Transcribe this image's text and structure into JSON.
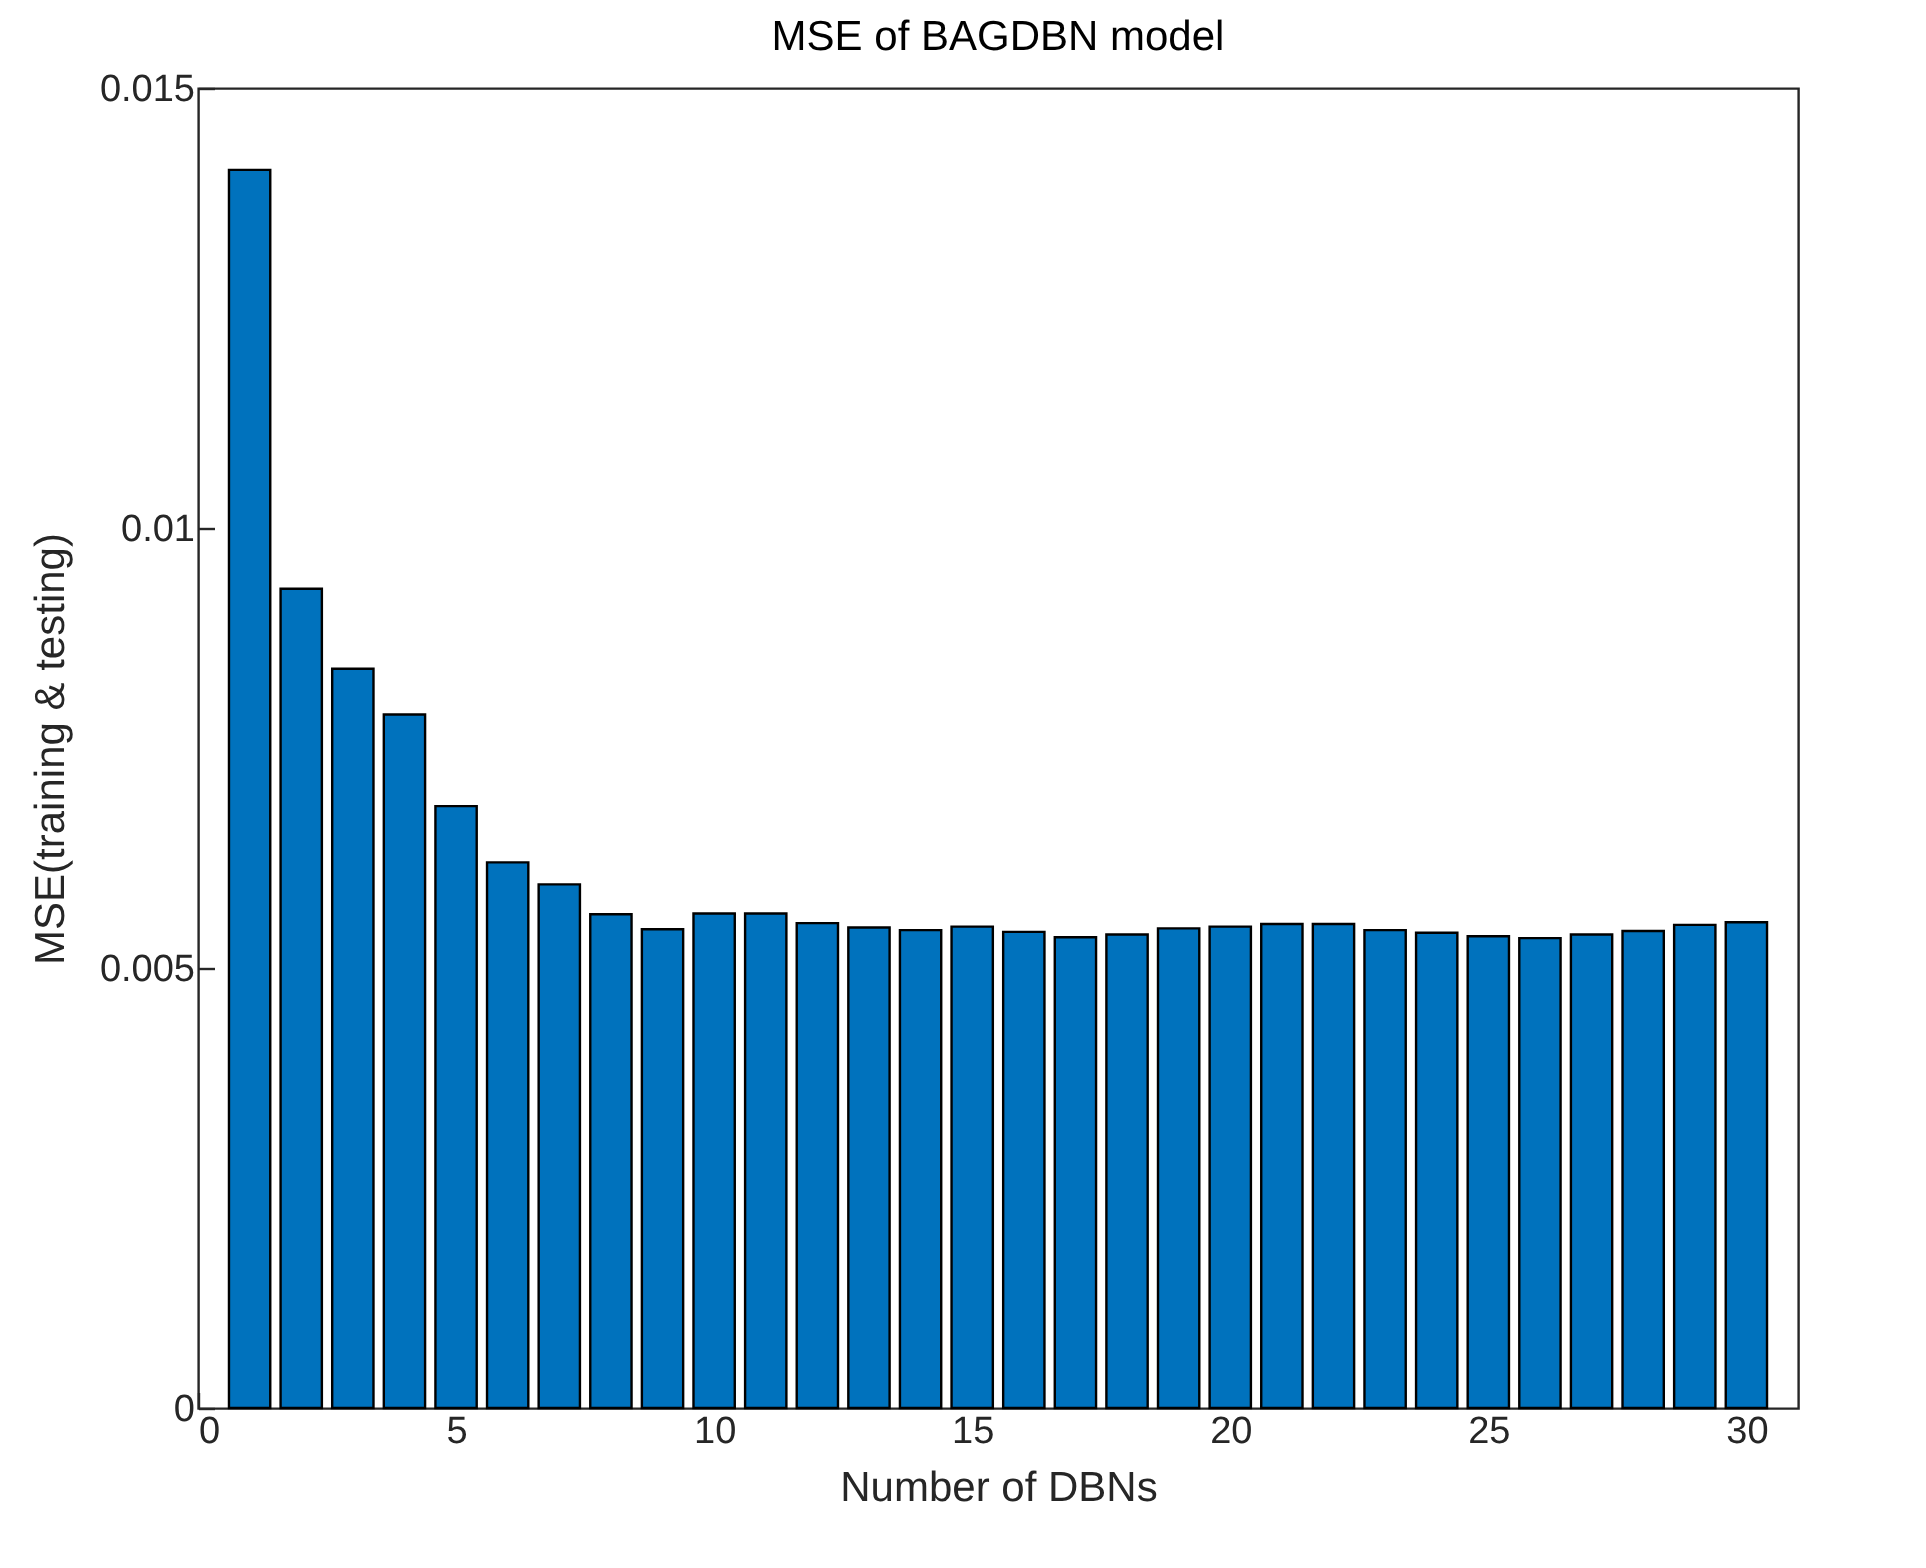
{
  "chart_data": {
    "type": "bar",
    "title": "MSE of BAGDBN model",
    "xlabel": "Number of DBNs",
    "ylabel": "MSE(training & testing)",
    "x": [
      1,
      2,
      3,
      4,
      5,
      6,
      7,
      8,
      9,
      10,
      11,
      12,
      13,
      14,
      15,
      16,
      17,
      18,
      19,
      20,
      21,
      22,
      23,
      24,
      25,
      26,
      27,
      28,
      29,
      30
    ],
    "values": [
      0.01407,
      0.00931,
      0.0084,
      0.00788,
      0.00684,
      0.0062,
      0.00595,
      0.00561,
      0.00544,
      0.00562,
      0.00562,
      0.00551,
      0.00546,
      0.00543,
      0.00547,
      0.00541,
      0.00535,
      0.00538,
      0.00545,
      0.00547,
      0.0055,
      0.0055,
      0.00543,
      0.0054,
      0.00536,
      0.00534,
      0.00538,
      0.00542,
      0.00549,
      0.00552
    ],
    "color": "#0072bd",
    "xlim": [
      0,
      31
    ],
    "xticks": [
      0,
      5,
      10,
      15,
      20,
      25,
      30
    ],
    "ylim": [
      0,
      0.015
    ],
    "yticks": [
      0,
      0.005,
      0.01,
      0.015
    ],
    "grid": false
  }
}
